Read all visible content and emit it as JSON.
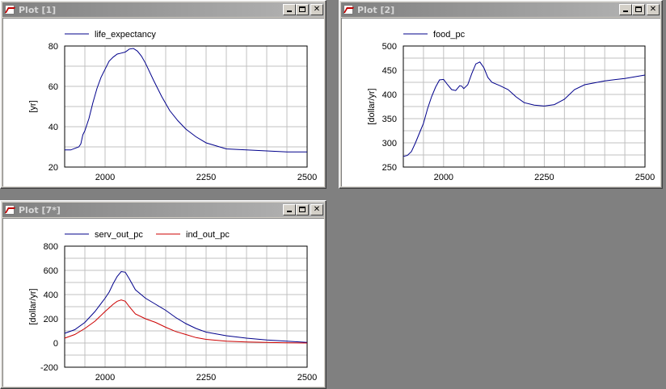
{
  "windows": [
    {
      "title": "Plot [1]",
      "chart_data": {
        "type": "line",
        "ylabel": "[yr]",
        "xlim": [
          1900,
          2500
        ],
        "ylim": [
          20,
          80
        ],
        "xticks": [
          2000,
          2250,
          2500
        ],
        "yticks": [
          20,
          40,
          60,
          80
        ],
        "grid": true,
        "legend_position": "top-left",
        "series": [
          {
            "name": "life_expectancy",
            "color": "#00008b",
            "x": [
              1900,
              1915,
              1935,
              1940,
              1945,
              1950,
              1960,
              1970,
              1980,
              1990,
              2000,
              2010,
              2020,
              2030,
              2040,
              2050,
              2060,
              2070,
              2080,
              2090,
              2100,
              2120,
              2140,
              2160,
              2180,
              2200,
              2225,
              2250,
              2300,
              2350,
              2400,
              2450,
              2500
            ],
            "y": [
              28.5,
              28.5,
              30,
              31.5,
              36,
              38,
              44,
              52,
              59,
              64.5,
              68.5,
              72.5,
              74.5,
              76,
              76.5,
              77,
              78.5,
              78.8,
              77.5,
              75,
              71.5,
              63,
              55,
              48,
              43,
              38.8,
              35,
              32,
              29,
              28.5,
              28,
              27.5,
              27.5
            ]
          }
        ]
      }
    },
    {
      "title": "Plot [2]",
      "chart_data": {
        "type": "line",
        "ylabel": "[dollar/yr]",
        "xlim": [
          1900,
          2500
        ],
        "ylim": [
          250,
          500
        ],
        "xticks": [
          2000,
          2250,
          2500
        ],
        "yticks": [
          250,
          300,
          350,
          400,
          450,
          500
        ],
        "grid": true,
        "legend_position": "top-left",
        "series": [
          {
            "name": "food_pc",
            "color": "#00008b",
            "x": [
              1900,
              1910,
              1920,
              1930,
              1940,
              1950,
              1960,
              1970,
              1980,
              1990,
              2000,
              2010,
              2020,
              2030,
              2040,
              2045,
              2050,
              2060,
              2070,
              2080,
              2090,
              2100,
              2110,
              2120,
              2140,
              2160,
              2180,
              2200,
              2225,
              2250,
              2275,
              2300,
              2325,
              2350,
              2400,
              2450,
              2500
            ],
            "y": [
              272,
              274,
              282,
              300,
              320,
              340,
              370,
              395,
              415,
              430,
              431,
              420,
              410,
              408,
              418,
              417,
              412,
              420,
              443,
              463,
              467,
              455,
              435,
              425,
              418,
              410,
              395,
              383,
              378,
              376,
              379,
              390,
              410,
              420,
              428,
              433,
              440
            ]
          }
        ]
      }
    },
    {
      "title": "Plot [7*]",
      "chart_data": {
        "type": "line",
        "ylabel": "[dollar/yr]",
        "xlim": [
          1900,
          2500
        ],
        "ylim": [
          -200,
          800
        ],
        "xticks": [
          2000,
          2250,
          2500
        ],
        "yticks": [
          -200,
          0,
          200,
          400,
          600,
          800
        ],
        "grid": true,
        "legend_position": "top-left",
        "series": [
          {
            "name": "serv_out_pc",
            "color": "#00008b",
            "x": [
              1900,
              1925,
              1950,
              1975,
              2000,
              2010,
              2020,
              2030,
              2040,
              2050,
              2060,
              2075,
              2100,
              2125,
              2150,
              2175,
              2200,
              2225,
              2250,
              2300,
              2350,
              2400,
              2450,
              2500
            ],
            "y": [
              80,
              110,
              170,
              260,
              370,
              420,
              490,
              550,
              590,
              585,
              530,
              440,
              370,
              320,
              270,
              210,
              160,
              120,
              90,
              60,
              40,
              25,
              15,
              5
            ]
          },
          {
            "name": "ind_out_pc",
            "color": "#cc0000",
            "x": [
              1900,
              1925,
              1950,
              1975,
              2000,
              2010,
              2020,
              2030,
              2040,
              2050,
              2060,
              2075,
              2100,
              2125,
              2150,
              2175,
              2200,
              2225,
              2250,
              2300,
              2350,
              2400,
              2450,
              2500
            ],
            "y": [
              40,
              70,
              120,
              180,
              260,
              290,
              320,
              345,
              355,
              345,
              300,
              240,
              200,
              170,
              130,
              95,
              70,
              45,
              30,
              15,
              8,
              5,
              2,
              0
            ]
          }
        ]
      }
    }
  ]
}
